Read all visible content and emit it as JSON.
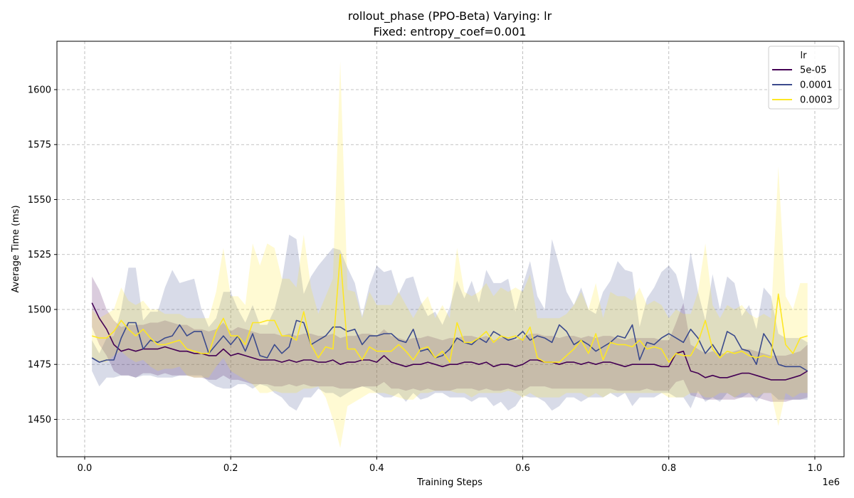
{
  "chart_data": {
    "type": "line",
    "title_line1": "rollout_phase (PPO-Beta) Varying: lr",
    "title_line2": "Fixed: entropy_coef=0.001",
    "xlabel": "Training Steps",
    "ylabel": "Average Time (ms)",
    "x_offset_label": "1e6",
    "xlim": [
      -0.038,
      1.04
    ],
    "ylim": [
      1433,
      1622
    ],
    "x_ticks": [
      0.0,
      0.2,
      0.4,
      0.6,
      0.8,
      1.0
    ],
    "x_tick_labels": [
      "0.0",
      "0.2",
      "0.4",
      "0.6",
      "0.8",
      "1.0"
    ],
    "y_ticks": [
      1450,
      1475,
      1500,
      1525,
      1550,
      1575,
      1600
    ],
    "y_tick_labels": [
      "1450",
      "1475",
      "1500",
      "1525",
      "1550",
      "1575",
      "1600"
    ],
    "grid": true,
    "legend_title": "lr",
    "legend_position": "top-right",
    "x": [
      0.01,
      0.02,
      0.03,
      0.04,
      0.05,
      0.06,
      0.07,
      0.08,
      0.09,
      0.1,
      0.11,
      0.12,
      0.13,
      0.14,
      0.15,
      0.16,
      0.17,
      0.18,
      0.19,
      0.2,
      0.21,
      0.22,
      0.23,
      0.24,
      0.25,
      0.26,
      0.27,
      0.28,
      0.29,
      0.3,
      0.31,
      0.32,
      0.33,
      0.34,
      0.35,
      0.36,
      0.37,
      0.38,
      0.39,
      0.4,
      0.41,
      0.42,
      0.43,
      0.44,
      0.45,
      0.46,
      0.47,
      0.48,
      0.49,
      0.5,
      0.51,
      0.52,
      0.53,
      0.54,
      0.55,
      0.56,
      0.57,
      0.58,
      0.59,
      0.6,
      0.61,
      0.62,
      0.63,
      0.64,
      0.65,
      0.66,
      0.67,
      0.68,
      0.69,
      0.7,
      0.71,
      0.72,
      0.73,
      0.74,
      0.75,
      0.76,
      0.77,
      0.78,
      0.79,
      0.8,
      0.81,
      0.82,
      0.83,
      0.84,
      0.85,
      0.86,
      0.87,
      0.88,
      0.89,
      0.9,
      0.91,
      0.92,
      0.93,
      0.94,
      0.95,
      0.96,
      0.97,
      0.98,
      0.99
    ],
    "series": [
      {
        "name": "5e-05",
        "color": "#440154",
        "values": [
          1503,
          1496,
          1491,
          1484,
          1481,
          1482,
          1481,
          1482,
          1482,
          1482,
          1483,
          1482,
          1481,
          1481,
          1480,
          1480,
          1479,
          1479,
          1482,
          1479,
          1480,
          1479,
          1478,
          1477,
          1477,
          1477,
          1476,
          1477,
          1476,
          1477,
          1477,
          1476,
          1476,
          1477,
          1475,
          1476,
          1476,
          1477,
          1477,
          1476,
          1479,
          1476,
          1475,
          1474,
          1475,
          1475,
          1476,
          1475,
          1474,
          1475,
          1475,
          1476,
          1476,
          1475,
          1476,
          1474,
          1475,
          1475,
          1474,
          1475,
          1477,
          1477,
          1476,
          1476,
          1475,
          1476,
          1476,
          1475,
          1476,
          1475,
          1476,
          1476,
          1475,
          1474,
          1475,
          1475,
          1475,
          1475,
          1474,
          1474,
          1480,
          1481,
          1472,
          1471,
          1469,
          1470,
          1469,
          1469,
          1470,
          1471,
          1471,
          1470,
          1469,
          1468,
          1468,
          1468,
          1469,
          1470,
          1472
        ],
        "lower": [
          1492,
          1484,
          1479,
          1472,
          1470,
          1470,
          1469,
          1471,
          1471,
          1470,
          1471,
          1470,
          1470,
          1470,
          1469,
          1469,
          1468,
          1468,
          1470,
          1468,
          1468,
          1467,
          1466,
          1466,
          1466,
          1465,
          1465,
          1466,
          1465,
          1466,
          1465,
          1465,
          1465,
          1465,
          1464,
          1464,
          1464,
          1465,
          1465,
          1465,
          1467,
          1464,
          1464,
          1463,
          1464,
          1463,
          1464,
          1463,
          1463,
          1463,
          1464,
          1464,
          1464,
          1463,
          1464,
          1463,
          1463,
          1464,
          1463,
          1463,
          1465,
          1465,
          1465,
          1464,
          1464,
          1464,
          1464,
          1464,
          1464,
          1464,
          1464,
          1464,
          1463,
          1463,
          1463,
          1463,
          1464,
          1463,
          1463,
          1463,
          1467,
          1468,
          1461,
          1460,
          1459,
          1459,
          1459,
          1459,
          1459,
          1460,
          1460,
          1460,
          1459,
          1458,
          1458,
          1458,
          1459,
          1459,
          1460
        ],
        "upper": [
          1515,
          1509,
          1500,
          1495,
          1492,
          1493,
          1493,
          1493,
          1494,
          1494,
          1495,
          1494,
          1493,
          1493,
          1491,
          1491,
          1490,
          1491,
          1494,
          1490,
          1492,
          1491,
          1490,
          1489,
          1489,
          1489,
          1488,
          1489,
          1488,
          1489,
          1489,
          1488,
          1488,
          1489,
          1487,
          1488,
          1488,
          1489,
          1489,
          1488,
          1491,
          1488,
          1487,
          1486,
          1487,
          1487,
          1488,
          1487,
          1486,
          1487,
          1487,
          1488,
          1488,
          1487,
          1488,
          1486,
          1487,
          1487,
          1486,
          1487,
          1489,
          1489,
          1488,
          1488,
          1487,
          1488,
          1488,
          1487,
          1488,
          1487,
          1488,
          1488,
          1487,
          1486,
          1487,
          1487,
          1487,
          1487,
          1486,
          1486,
          1494,
          1503,
          1484,
          1482,
          1480,
          1481,
          1480,
          1480,
          1481,
          1482,
          1482,
          1481,
          1480,
          1479,
          1479,
          1479,
          1480,
          1481,
          1484
        ]
      },
      {
        "name": "0.0001",
        "color": "#3b4a8c",
        "values": [
          1478,
          1476,
          1477,
          1477,
          1487,
          1494,
          1494,
          1482,
          1486,
          1485,
          1487,
          1488,
          1493,
          1488,
          1490,
          1490,
          1480,
          1484,
          1488,
          1484,
          1488,
          1481,
          1489,
          1479,
          1478,
          1484,
          1480,
          1483,
          1495,
          1494,
          1484,
          1486,
          1488,
          1492,
          1492,
          1490,
          1491,
          1484,
          1488,
          1488,
          1489,
          1489,
          1486,
          1485,
          1491,
          1481,
          1482,
          1478,
          1479,
          1482,
          1487,
          1485,
          1484,
          1487,
          1485,
          1490,
          1488,
          1486,
          1487,
          1490,
          1486,
          1488,
          1487,
          1485,
          1493,
          1490,
          1484,
          1486,
          1484,
          1481,
          1483,
          1485,
          1488,
          1487,
          1493,
          1477,
          1485,
          1484,
          1487,
          1489,
          1487,
          1485,
          1491,
          1487,
          1480,
          1484,
          1479,
          1490,
          1488,
          1482,
          1481,
          1475,
          1489,
          1484,
          1475,
          1474,
          1474,
          1474,
          1472
        ],
        "lower": [
          1472,
          1465,
          1469,
          1469,
          1470,
          1470,
          1469,
          1470,
          1470,
          1469,
          1469,
          1469,
          1470,
          1470,
          1470,
          1470,
          1467,
          1465,
          1464,
          1464,
          1466,
          1466,
          1464,
          1466,
          1465,
          1462,
          1460,
          1456,
          1454,
          1460,
          1460,
          1464,
          1462,
          1462,
          1460,
          1462,
          1464,
          1465,
          1464,
          1462,
          1460,
          1460,
          1462,
          1458,
          1462,
          1459,
          1460,
          1462,
          1462,
          1460,
          1460,
          1460,
          1458,
          1460,
          1460,
          1456,
          1458,
          1454,
          1456,
          1461,
          1460,
          1460,
          1458,
          1454,
          1456,
          1460,
          1460,
          1458,
          1460,
          1460,
          1460,
          1462,
          1460,
          1462,
          1456,
          1460,
          1460,
          1460,
          1462,
          1462,
          1460,
          1460,
          1455,
          1463,
          1458,
          1460,
          1458,
          1462,
          1460,
          1460,
          1462,
          1458,
          1462,
          1462,
          1459,
          1459,
          1459,
          1459,
          1459
        ],
        "upper": [
          1486,
          1480,
          1487,
          1488,
          1500,
          1519,
          1519,
          1495,
          1499,
          1499,
          1510,
          1518,
          1512,
          1513,
          1514,
          1500,
          1492,
          1496,
          1508,
          1508,
          1500,
          1494,
          1502,
          1493,
          1493,
          1500,
          1513,
          1534,
          1532,
          1507,
          1515,
          1520,
          1524,
          1528,
          1527,
          1519,
          1512,
          1497,
          1511,
          1520,
          1517,
          1518,
          1507,
          1514,
          1515,
          1504,
          1497,
          1499,
          1493,
          1501,
          1513,
          1505,
          1513,
          1503,
          1518,
          1512,
          1512,
          1514,
          1499,
          1511,
          1522,
          1506,
          1500,
          1532,
          1520,
          1508,
          1502,
          1510,
          1500,
          1498,
          1508,
          1513,
          1522,
          1518,
          1517,
          1492,
          1505,
          1510,
          1517,
          1520,
          1516,
          1504,
          1526,
          1508,
          1495,
          1516,
          1500,
          1515,
          1512,
          1497,
          1502,
          1491,
          1510,
          1506,
          1489,
          1487,
          1487,
          1487,
          1485
        ]
      },
      {
        "name": "0.0003",
        "color": "#fde725",
        "values": [
          1488,
          1487,
          1487,
          1490,
          1495,
          1491,
          1488,
          1491,
          1487,
          1484,
          1484,
          1485,
          1486,
          1482,
          1481,
          1480,
          1480,
          1490,
          1496,
          1488,
          1488,
          1484,
          1494,
          1494,
          1495,
          1495,
          1488,
          1488,
          1486,
          1499,
          1484,
          1478,
          1483,
          1482,
          1525,
          1482,
          1482,
          1477,
          1483,
          1481,
          1481,
          1481,
          1484,
          1481,
          1477,
          1482,
          1483,
          1478,
          1481,
          1476,
          1494,
          1485,
          1485,
          1487,
          1490,
          1485,
          1488,
          1487,
          1488,
          1486,
          1492,
          1478,
          1476,
          1476,
          1476,
          1479,
          1482,
          1486,
          1480,
          1489,
          1477,
          1485,
          1484,
          1484,
          1483,
          1486,
          1482,
          1483,
          1482,
          1476,
          1480,
          1479,
          1479,
          1485,
          1495,
          1482,
          1478,
          1481,
          1480,
          1481,
          1479,
          1478,
          1479,
          1478,
          1507,
          1484,
          1480,
          1487,
          1488
        ],
        "lower": [
          1478,
          1476,
          1476,
          1479,
          1481,
          1478,
          1476,
          1477,
          1474,
          1472,
          1473,
          1473,
          1474,
          1470,
          1469,
          1469,
          1469,
          1474,
          1478,
          1472,
          1470,
          1468,
          1466,
          1462,
          1462,
          1463,
          1462,
          1462,
          1462,
          1464,
          1464,
          1465,
          1460,
          1450,
          1437,
          1456,
          1458,
          1460,
          1462,
          1462,
          1462,
          1461,
          1460,
          1459,
          1459,
          1462,
          1462,
          1463,
          1463,
          1463,
          1462,
          1462,
          1460,
          1462,
          1462,
          1462,
          1462,
          1463,
          1462,
          1460,
          1462,
          1460,
          1460,
          1460,
          1460,
          1462,
          1462,
          1462,
          1460,
          1462,
          1460,
          1462,
          1462,
          1462,
          1462,
          1462,
          1462,
          1462,
          1462,
          1460,
          1460,
          1460,
          1462,
          1462,
          1460,
          1460,
          1462,
          1462,
          1460,
          1462,
          1462,
          1460,
          1462,
          1462,
          1447,
          1462,
          1460,
          1462,
          1462
        ],
        "upper": [
          1500,
          1496,
          1498,
          1500,
          1510,
          1504,
          1502,
          1504,
          1500,
          1500,
          1498,
          1498,
          1498,
          1496,
          1496,
          1496,
          1496,
          1508,
          1528,
          1506,
          1506,
          1502,
          1530,
          1520,
          1530,
          1528,
          1514,
          1514,
          1510,
          1534,
          1510,
          1498,
          1506,
          1514,
          1613,
          1509,
          1508,
          1496,
          1508,
          1502,
          1502,
          1502,
          1508,
          1502,
          1496,
          1502,
          1506,
          1496,
          1502,
          1496,
          1528,
          1508,
          1506,
          1508,
          1512,
          1506,
          1510,
          1508,
          1510,
          1508,
          1516,
          1496,
          1496,
          1496,
          1496,
          1498,
          1502,
          1508,
          1500,
          1512,
          1496,
          1508,
          1506,
          1506,
          1504,
          1510,
          1502,
          1504,
          1502,
          1496,
          1500,
          1498,
          1498,
          1508,
          1530,
          1502,
          1496,
          1502,
          1500,
          1502,
          1498,
          1496,
          1498,
          1496,
          1565,
          1506,
          1500,
          1512,
          1512
        ]
      }
    ]
  }
}
